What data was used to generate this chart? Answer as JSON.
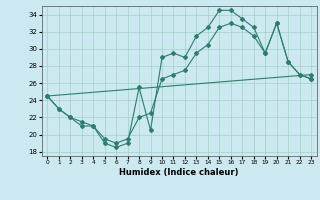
{
  "xlabel": "Humidex (Indice chaleur)",
  "bg_color": "#cce8f0",
  "line_color": "#2e7d6e",
  "xlim": [
    -0.5,
    23.5
  ],
  "ylim": [
    17.5,
    35.0
  ],
  "yticks": [
    18,
    20,
    22,
    24,
    26,
    28,
    30,
    32,
    34
  ],
  "xticks": [
    0,
    1,
    2,
    3,
    4,
    5,
    6,
    7,
    8,
    9,
    10,
    11,
    12,
    13,
    14,
    15,
    16,
    17,
    18,
    19,
    20,
    21,
    22,
    23
  ],
  "line1_x": [
    0,
    1,
    2,
    3,
    4,
    5,
    6,
    7,
    8,
    9,
    10,
    11,
    12,
    13,
    14,
    15,
    16,
    17,
    18,
    19,
    20,
    21,
    22,
    23
  ],
  "line1_y": [
    24.5,
    23.0,
    22.0,
    21.0,
    21.0,
    19.0,
    18.5,
    19.0,
    25.5,
    20.5,
    29.0,
    29.5,
    29.0,
    31.5,
    32.5,
    34.5,
    34.5,
    33.5,
    32.5,
    29.5,
    33.0,
    28.5,
    27.0,
    26.5
  ],
  "line2_x": [
    0,
    1,
    2,
    3,
    4,
    5,
    6,
    7,
    8,
    9,
    10,
    11,
    12,
    13,
    14,
    15,
    16,
    17,
    18,
    19,
    20,
    21,
    22,
    23
  ],
  "line2_y": [
    24.5,
    23.0,
    22.0,
    21.5,
    21.0,
    19.5,
    19.0,
    19.5,
    22.0,
    22.5,
    26.5,
    27.0,
    27.5,
    29.5,
    30.5,
    32.5,
    33.0,
    32.5,
    31.5,
    29.5,
    33.0,
    28.5,
    27.0,
    26.5
  ],
  "line3_x": [
    0,
    23
  ],
  "line3_y": [
    24.5,
    27.0
  ]
}
